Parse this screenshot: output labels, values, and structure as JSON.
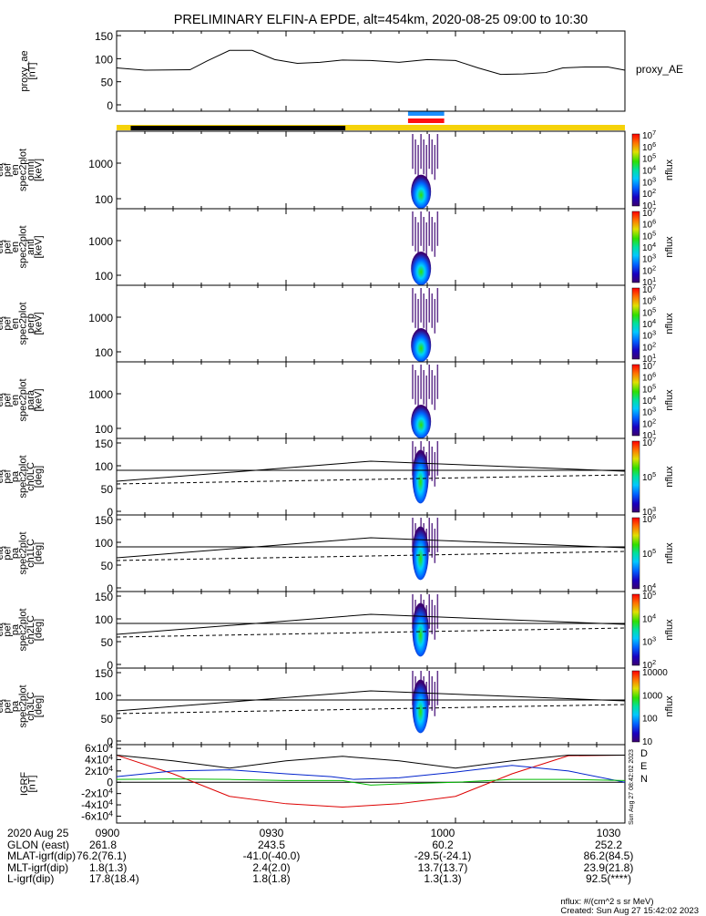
{
  "title": "PRELIMINARY ELFIN-A EPDE, alt=454km, 2020-08-25 09:00 to 10:30",
  "chart_data": {
    "type": "line",
    "time_axis": {
      "start_min": 0,
      "end_min": 90,
      "tick_labels": [
        "0900",
        "0930",
        "1000",
        "1030"
      ],
      "tick_mins": [
        0,
        30,
        60,
        90
      ]
    },
    "panels": [
      {
        "id": "proxy_ae",
        "ylabel": [
          "proxy_ae",
          "[nT]"
        ],
        "right_label": "proxy_AE",
        "yticks": [
          "0",
          "50",
          "100",
          "150"
        ],
        "ylim": [
          0,
          160
        ],
        "series": [
          {
            "name": "proxy_AE",
            "x": [
              0,
              5,
              13,
              16,
              20,
              24,
              28,
              32,
              36,
              40,
              45,
              50,
              55,
              60,
              64,
              68,
              72,
              76,
              79,
              83,
              87,
              90
            ],
            "y": [
              80,
              75,
              76,
              95,
              118,
              118,
              98,
              90,
              92,
              97,
              96,
              92,
              98,
              96,
              80,
              66,
              67,
              70,
              80,
              82,
              82,
              75
            ]
          }
        ]
      },
      {
        "id": "omni",
        "ylabel": [
          "ela",
          "pef",
          "en",
          "spec2plot",
          "omni",
          "[keV]"
        ],
        "yticks": [
          "100",
          "1000"
        ],
        "colorbar": {
          "label": "nflux",
          "ticks": [
            "10^1",
            "10^2",
            "10^3",
            "10^4",
            "10^5",
            "10^6",
            "10^7"
          ]
        }
      },
      {
        "id": "anti",
        "ylabel": [
          "ela",
          "pef",
          "en",
          "spec2plot",
          "anti",
          "[keV]"
        ],
        "yticks": [
          "100",
          "1000"
        ],
        "colorbar": {
          "label": "nflux",
          "ticks": [
            "10^1",
            "10^2",
            "10^3",
            "10^4",
            "10^5",
            "10^6",
            "10^7"
          ]
        }
      },
      {
        "id": "perp",
        "ylabel": [
          "ela",
          "pef",
          "en",
          "spec2plot",
          "perp",
          "[keV]"
        ],
        "yticks": [
          "100",
          "1000"
        ],
        "colorbar": {
          "label": "nflux",
          "ticks": [
            "10^1",
            "10^2",
            "10^3",
            "10^4",
            "10^5",
            "10^6",
            "10^7"
          ]
        }
      },
      {
        "id": "para",
        "ylabel": [
          "ela",
          "pef",
          "en",
          "spec2plot",
          "para",
          "[keV]"
        ],
        "yticks": [
          "100",
          "1000"
        ],
        "colorbar": {
          "label": "nflux",
          "ticks": [
            "10^1",
            "10^2",
            "10^3",
            "10^4",
            "10^5",
            "10^6",
            "10^7"
          ]
        }
      },
      {
        "id": "ch0LC",
        "ylabel": [
          "ela",
          "pef",
          "pa",
          "spec2plot",
          "ch0LC",
          "[deg]"
        ],
        "yticks": [
          "0",
          "50",
          "100",
          "150"
        ],
        "colorbar": {
          "label": "nflux",
          "ticks": [
            "10^3",
            "10^5",
            "10^7"
          ]
        }
      },
      {
        "id": "ch1LC",
        "ylabel": [
          "ela",
          "pef",
          "pa",
          "spec2plot",
          "ch1LC",
          "[deg]"
        ],
        "yticks": [
          "0",
          "50",
          "100",
          "150"
        ],
        "colorbar": {
          "label": "nflux",
          "ticks": [
            "10^4",
            "10^5",
            "10^6"
          ]
        }
      },
      {
        "id": "ch2LC",
        "ylabel": [
          "ela",
          "pef",
          "pa",
          "spec2plot",
          "ch2LC",
          "[deg]"
        ],
        "yticks": [
          "0",
          "50",
          "100",
          "150"
        ],
        "colorbar": {
          "label": "nflux",
          "ticks": [
            "10^2",
            "10^3",
            "10^4",
            "10^5"
          ]
        }
      },
      {
        "id": "ch3LC",
        "ylabel": [
          "ela",
          "pef",
          "pa",
          "spec2plot",
          "ch3LC",
          "[deg]"
        ],
        "yticks": [
          "0",
          "50",
          "100",
          "150"
        ],
        "colorbar": {
          "label": "nflux",
          "ticks": [
            "10",
            "100",
            "1000",
            "10000"
          ]
        }
      },
      {
        "id": "igrf",
        "ylabel": [
          "IGRF",
          "[nT]"
        ],
        "yticks": [
          "-6x10^4",
          "-4x10^4",
          "-2x10^4",
          "0",
          "2x10^4",
          "4x10^4",
          "6x10^4"
        ],
        "legend": [
          "D",
          "E",
          "N"
        ],
        "series": [
          {
            "name": "D",
            "color": "#dd0000",
            "x": [
              0,
              10,
              20,
              30,
              40,
              50,
              60,
              70,
              80,
              90
            ],
            "y": [
              48000,
              15000,
              -25000,
              -38000,
              -44000,
              -38000,
              -25000,
              15000,
              47000,
              48000
            ]
          },
          {
            "name": "E",
            "color": "#0022cc",
            "x": [
              0,
              10,
              20,
              30,
              38,
              42,
              50,
              60,
              70,
              80,
              90
            ],
            "y": [
              10000,
              20000,
              22000,
              15000,
              10000,
              5000,
              8000,
              18000,
              30000,
              20000,
              0
            ]
          },
          {
            "name": "N",
            "color": "#00bb00",
            "x": [
              0,
              10,
              20,
              30,
              40,
              45,
              50,
              60,
              70,
              80,
              90
            ],
            "y": [
              5000,
              6000,
              5000,
              3000,
              3000,
              -5000,
              -3000,
              0,
              5000,
              5000,
              3000
            ]
          },
          {
            "name": "F",
            "color": "#000000",
            "x": [
              0,
              10,
              20,
              30,
              40,
              50,
              60,
              70,
              80,
              90
            ],
            "y": [
              48000,
              38000,
              25000,
              38000,
              46000,
              38000,
              25000,
              38000,
              48000,
              48000
            ]
          }
        ]
      }
    ],
    "colors": {
      "orbit_bar_yellow": "#f5d20a",
      "orbit_bar_black": "#000000",
      "science_zone_blue": "#1a8fff",
      "science_zone_red": "#ff1010"
    }
  },
  "footer": {
    "rows": [
      [
        "2020 Aug 25",
        "0900",
        "0930",
        "1000",
        "1030"
      ],
      [
        "GLON (east)",
        "261.8",
        "243.5",
        "60.2",
        "252.2"
      ],
      [
        "MLAT-igrf(dip)",
        "76.2(76.1)",
        "-41.0(-40.0)",
        "-29.5(-24.1)",
        "86.2(84.5)"
      ],
      [
        "MLT-igrf(dip)",
        "1.8(1.3)",
        "2.4(2.0)",
        "13.7(13.7)",
        "23.9(21.8)"
      ],
      [
        "L-igrf(dip)",
        "17.8(18.4)",
        "1.8(1.8)",
        "1.3(1.3)",
        "92.5(****)"
      ]
    ],
    "nflux_units": "nflux: #/(cm^2 s sr MeV)",
    "created": "Created: Sun Aug 27 15:42:02 2023",
    "side_stamp": "Sun Aug 27 08:42:02 2023"
  }
}
